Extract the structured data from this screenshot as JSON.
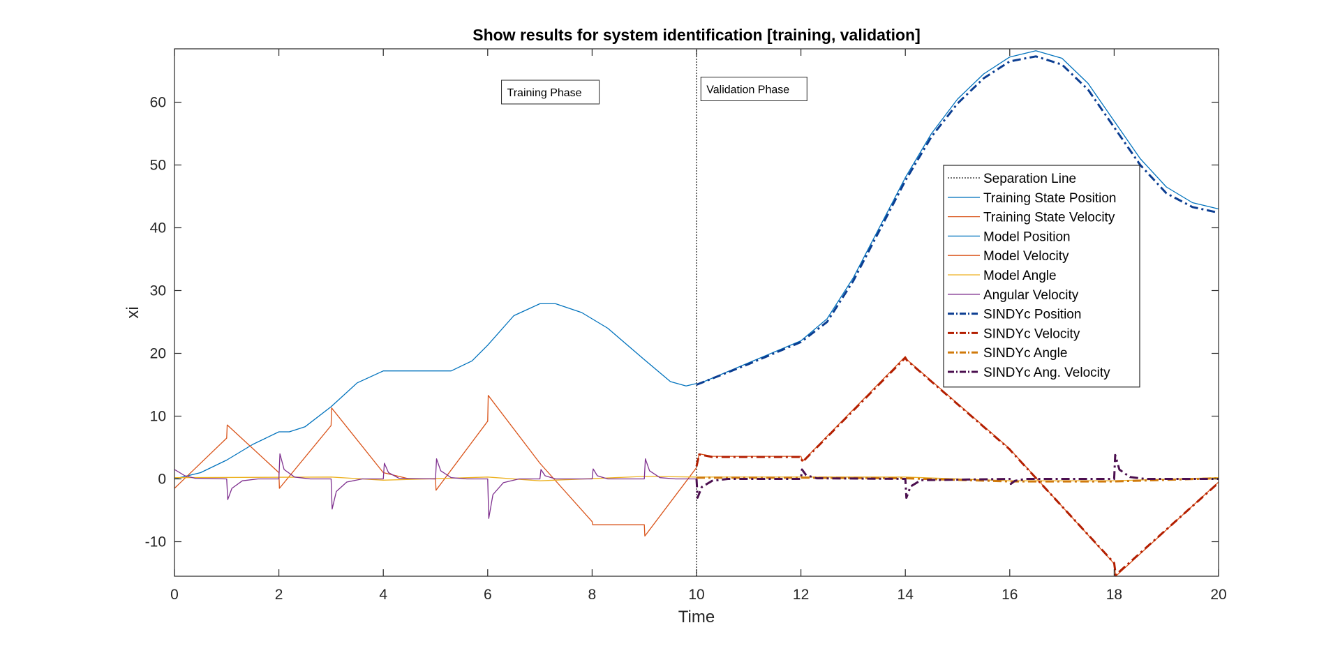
{
  "chart_data": {
    "type": "line",
    "title": "Show results for system identification [training, validation]",
    "xlabel": "Time",
    "ylabel": "xi",
    "xlim": [
      0,
      20
    ],
    "ylim": [
      -15.5,
      68.5
    ],
    "xticks": [
      0,
      2,
      4,
      6,
      8,
      10,
      12,
      14,
      16,
      18,
      20
    ],
    "xtick_labels": [
      "0",
      "2",
      "4",
      "6",
      "8",
      "10",
      "12",
      "14",
      "16",
      "18",
      "20"
    ],
    "yticks": [
      -10,
      0,
      10,
      20,
      30,
      40,
      50,
      60
    ],
    "ytick_labels": [
      "-10",
      "0",
      "10",
      "20",
      "30",
      "40",
      "50",
      "60"
    ],
    "grid": false,
    "legend_position": "top-right",
    "annotations": [
      {
        "text": "Training Phase",
        "x": 7.2,
        "y": 61.5
      },
      {
        "text": "Validation Phase",
        "x": 11.1,
        "y": 62.0
      }
    ],
    "series": [
      {
        "name": "Separation Line",
        "color": "#404040",
        "style": "dotted",
        "width": 1.5,
        "x": [
          10,
          10
        ],
        "y": [
          -15.5,
          68.5
        ]
      },
      {
        "name": "Training State Position",
        "color": "#0072BD",
        "style": "solid",
        "width": 1.3,
        "x": [
          0,
          0.5,
          1.0,
          1.5,
          2.0,
          2.2,
          2.5,
          3.0,
          3.5,
          4.0,
          5.0,
          5.3,
          5.7,
          6.0,
          6.5,
          7.0,
          7.3,
          7.8,
          8.3,
          9.0,
          9.5,
          9.8,
          10.0
        ],
        "y": [
          0,
          1.0,
          3.0,
          5.5,
          7.5,
          7.5,
          8.3,
          11.5,
          15.3,
          17.2,
          17.2,
          17.2,
          18.8,
          21.3,
          26.0,
          27.9,
          27.9,
          26.5,
          24.0,
          19.0,
          15.5,
          14.8,
          15.2
        ]
      },
      {
        "name": "Training State Velocity",
        "color": "#D95319",
        "style": "solid",
        "width": 1.3,
        "x": [
          0,
          1.0,
          1.01,
          2.0,
          2.01,
          3.0,
          3.01,
          4.0,
          4.5,
          5.0,
          5.01,
          6.0,
          6.01,
          7.0,
          8.0,
          8.01,
          9.0,
          9.01,
          10.0
        ],
        "y": [
          -1.5,
          6.5,
          8.6,
          1.0,
          -1.5,
          8.5,
          11.3,
          1.0,
          0,
          0,
          -1.8,
          9.2,
          13.3,
          2.5,
          -6.8,
          -7.3,
          -7.3,
          -9.1,
          1.8
        ]
      },
      {
        "name": "Model Position",
        "color": "#0072BD",
        "style": "solid",
        "width": 1.3,
        "x": [
          10,
          11,
          12,
          12.5,
          13,
          13.5,
          14,
          14.5,
          15,
          15.5,
          16,
          16.5,
          17,
          17.5,
          18,
          18.5,
          19,
          19.5,
          20
        ],
        "y": [
          15.0,
          18.5,
          22.0,
          25.5,
          32.0,
          40.0,
          48.0,
          55.0,
          60.5,
          64.5,
          67.2,
          68.2,
          67.0,
          63.0,
          57.0,
          51.0,
          46.5,
          44.0,
          43.0
        ]
      },
      {
        "name": "Model Velocity",
        "color": "#D95319",
        "style": "solid",
        "width": 1.3,
        "x": [
          10,
          10.05,
          10.3,
          12.0,
          12.03,
          14.0,
          14.03,
          16.0,
          16.03,
          18.0,
          18.03,
          20.0
        ],
        "y": [
          2.0,
          4.0,
          3.6,
          3.6,
          2.8,
          19.5,
          19.0,
          4.8,
          4.5,
          -13.5,
          -15.5,
          -0.5
        ]
      },
      {
        "name": "Model Angle",
        "color": "#EDB120",
        "style": "solid",
        "width": 1.3,
        "x": [
          0,
          3,
          4,
          6,
          7,
          9,
          10,
          12,
          14,
          16,
          18,
          20
        ],
        "y": [
          0.2,
          0.3,
          -0.2,
          0.3,
          -0.3,
          0.4,
          0.3,
          0.3,
          0.3,
          -0.3,
          -0.3,
          0.2
        ]
      },
      {
        "name": "Angular Velocity",
        "color": "#7E2F8E",
        "style": "solid",
        "width": 1.3,
        "x": [
          0,
          0.2,
          0.4,
          1.0,
          1.02,
          1.1,
          1.3,
          1.6,
          2.0,
          2.02,
          2.1,
          2.3,
          2.6,
          3.0,
          3.02,
          3.1,
          3.3,
          3.6,
          4.0,
          4.02,
          4.1,
          4.3,
          5.0,
          5.02,
          5.1,
          5.3,
          5.6,
          6.0,
          6.02,
          6.1,
          6.3,
          6.6,
          7.0,
          7.02,
          7.1,
          7.3,
          8.0,
          8.02,
          8.1,
          8.3,
          9.0,
          9.02,
          9.1,
          9.3,
          9.6,
          10.0
        ],
        "y": [
          1.5,
          0.5,
          0.1,
          0,
          -3.3,
          -1.5,
          -0.3,
          0,
          0,
          4.0,
          1.5,
          0.3,
          0,
          0,
          -4.8,
          -2.0,
          -0.5,
          0,
          0,
          2.5,
          1.0,
          0.1,
          0,
          3.2,
          1.3,
          0.2,
          0,
          0,
          -6.3,
          -2.5,
          -0.6,
          0,
          0,
          1.5,
          0.5,
          0,
          0,
          1.6,
          0.5,
          0,
          0,
          3.2,
          1.3,
          0.2,
          0,
          0
        ]
      },
      {
        "name": "SINDYc Position",
        "color": "#0B3D91",
        "style": "dashdot",
        "width": 3,
        "x": [
          10,
          11,
          12,
          12.5,
          13,
          13.5,
          14,
          14.5,
          15,
          15.5,
          16,
          16.5,
          17,
          17.5,
          18,
          18.5,
          19,
          19.5,
          20
        ],
        "y": [
          15.0,
          18.3,
          21.8,
          25.0,
          31.5,
          39.5,
          47.5,
          54.5,
          59.8,
          63.8,
          66.5,
          67.3,
          66.0,
          62.0,
          56.0,
          50.0,
          45.5,
          43.3,
          42.4
        ]
      },
      {
        "name": "SINDYc Velocity",
        "color": "#B31E00",
        "style": "dashdot",
        "width": 3,
        "x": [
          10,
          10.05,
          10.3,
          12.0,
          12.03,
          14.0,
          14.03,
          16.0,
          16.03,
          18.0,
          18.03,
          20.0
        ],
        "y": [
          2.0,
          3.9,
          3.5,
          3.5,
          2.7,
          19.3,
          18.9,
          4.7,
          4.4,
          -13.4,
          -15.3,
          -0.6
        ]
      },
      {
        "name": "SINDYc Angle",
        "color": "#D07A0C",
        "style": "dashdot",
        "width": 3,
        "x": [
          10,
          12,
          14,
          16,
          18,
          20
        ],
        "y": [
          0.2,
          0.2,
          0.1,
          -0.4,
          -0.4,
          0.1
        ]
      },
      {
        "name": "SINDYc Ang. Velocity",
        "color": "#4B0F4F",
        "style": "dashdot",
        "width": 3,
        "x": [
          10,
          10.02,
          10.1,
          10.3,
          10.6,
          12.0,
          12.02,
          12.1,
          12.3,
          14.0,
          14.02,
          14.1,
          14.3,
          16.0,
          16.02,
          16.1,
          16.3,
          18.0,
          18.02,
          18.1,
          18.3,
          18.6,
          20.0
        ],
        "y": [
          0,
          -3.0,
          -1.3,
          -0.3,
          0,
          0,
          1.5,
          0.6,
          0.1,
          0,
          -3.0,
          -1.2,
          -0.2,
          0,
          -0.8,
          -0.3,
          0,
          0,
          3.8,
          1.5,
          0.3,
          0,
          0
        ]
      }
    ]
  }
}
